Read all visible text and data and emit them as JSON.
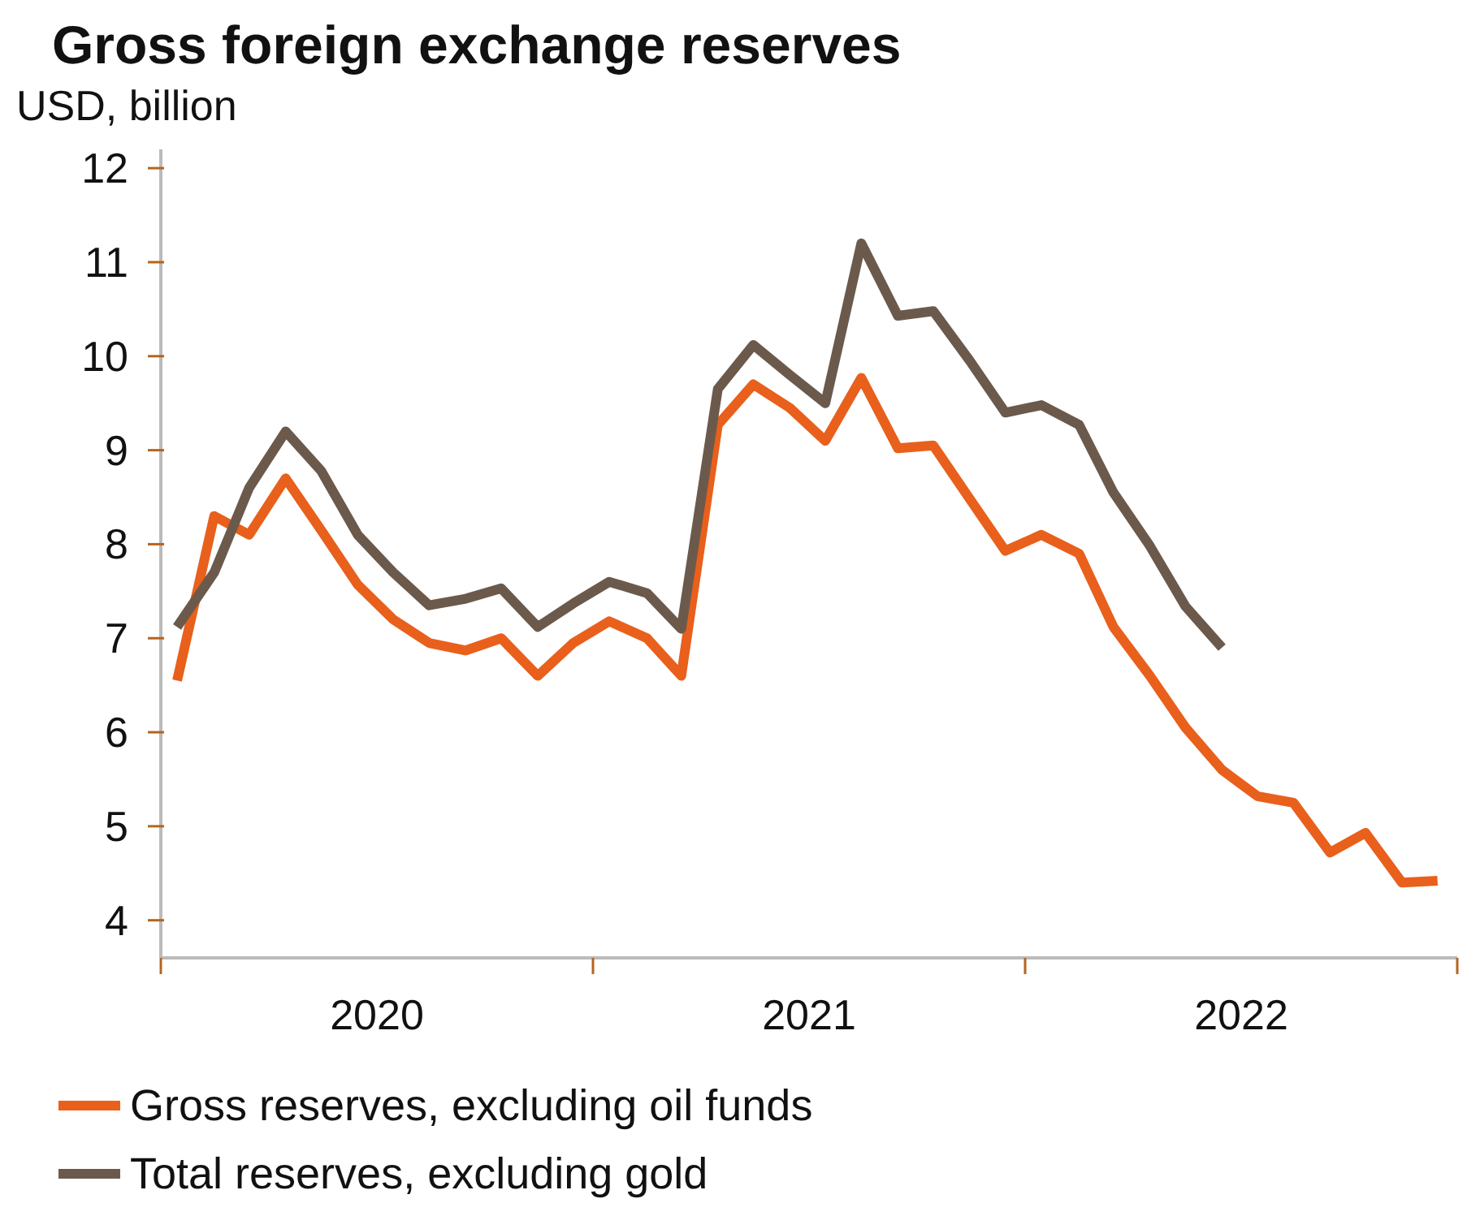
{
  "chart_data": {
    "type": "line",
    "title": "Gross foreign exchange reserves",
    "ylabel": "USD, billion",
    "x": [
      "2020-01-15",
      "2020-02-15",
      "2020-03-15",
      "2020-04-15",
      "2020-05-15",
      "2020-06-15",
      "2020-07-15",
      "2020-08-15",
      "2020-09-15",
      "2020-10-15",
      "2020-11-15",
      "2020-12-15",
      "2021-01-15",
      "2021-02-15",
      "2021-03-15",
      "2021-04-15",
      "2021-05-15",
      "2021-06-15",
      "2021-07-15",
      "2021-08-15",
      "2021-09-15",
      "2021-10-15",
      "2021-11-15",
      "2021-12-15",
      "2022-01-15",
      "2022-02-15",
      "2022-03-15",
      "2022-04-15",
      "2022-05-15",
      "2022-06-15",
      "2022-07-15",
      "2022-08-15",
      "2022-09-15",
      "2022-10-15",
      "2022-11-15",
      "2022-12-15"
    ],
    "series": [
      {
        "name": "Gross reserves, excluding oil funds",
        "color": "#e8601c",
        "values": [
          6.55,
          8.3,
          8.1,
          8.7,
          8.15,
          7.57,
          7.2,
          6.95,
          6.87,
          7.0,
          6.6,
          6.95,
          7.18,
          7.0,
          6.6,
          9.27,
          9.7,
          9.45,
          9.1,
          9.77,
          9.02,
          9.05,
          8.48,
          7.93,
          8.1,
          7.9,
          7.12,
          6.6,
          6.05,
          5.6,
          5.32,
          5.25,
          4.72,
          4.93,
          4.4,
          4.42
        ]
      },
      {
        "name": "Total reserves, excluding gold",
        "color": "#6b5a4c",
        "values": [
          7.12,
          7.7,
          8.6,
          9.2,
          8.78,
          8.1,
          7.7,
          7.35,
          7.42,
          7.53,
          7.12,
          7.37,
          7.6,
          7.48,
          7.1,
          9.65,
          10.12,
          9.8,
          9.5,
          11.2,
          10.43,
          10.48,
          9.95,
          9.4,
          9.48,
          9.27,
          8.55,
          7.98,
          7.34,
          6.9,
          null,
          null,
          null,
          null,
          null,
          null
        ]
      }
    ],
    "xlim": [
      "2020-01-01",
      "2023-01-01"
    ],
    "xticks": [
      {
        "value": "2020-01-01",
        "label": null
      },
      {
        "value": "2020-07-01",
        "label": "2020"
      },
      {
        "value": "2021-01-01",
        "label": null
      },
      {
        "value": "2021-07-01",
        "label": "2021"
      },
      {
        "value": "2022-01-01",
        "label": null
      },
      {
        "value": "2022-07-01",
        "label": "2022"
      },
      {
        "value": "2023-01-01",
        "label": null
      }
    ],
    "ylim": [
      3.6,
      12.2
    ],
    "yticks": [
      4,
      5,
      6,
      7,
      8,
      9,
      10,
      11,
      12
    ],
    "grid": false,
    "legend": "bottom",
    "marker": "none",
    "line_style": "solid"
  }
}
